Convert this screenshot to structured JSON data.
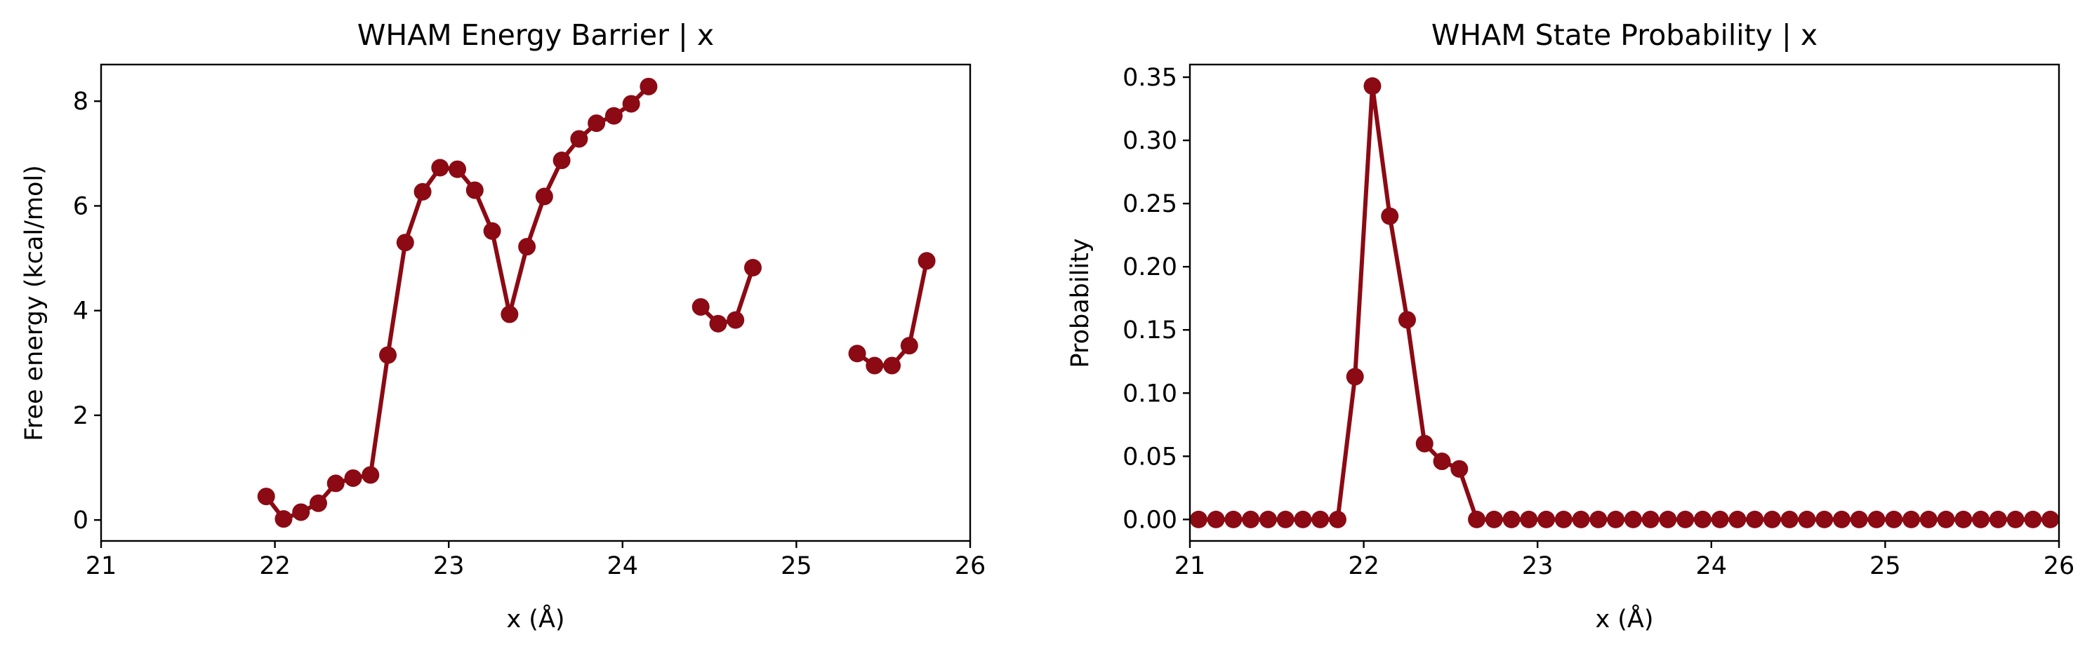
{
  "chart_data": [
    {
      "type": "line",
      "title": "WHAM Energy Barrier | x",
      "xlabel": "x (Å)",
      "ylabel": "Free energy (kcal/mol)",
      "xlim": [
        21,
        26
      ],
      "ylim": [
        -0.4,
        8.7
      ],
      "xticks": [
        21,
        22,
        23,
        24,
        25,
        26
      ],
      "xtick_labels": [
        "21",
        "22",
        "23",
        "24",
        "25",
        "26"
      ],
      "yticks": [
        0,
        2,
        4,
        6,
        8
      ],
      "ytick_labels": [
        "0",
        "2",
        "4",
        "6",
        "8"
      ],
      "grid": false,
      "color": "#8b0a14",
      "marker": "circle",
      "segments": [
        {
          "x": [
            21.95,
            22.05,
            22.15,
            22.25,
            22.35,
            22.45,
            22.55,
            22.65,
            22.75,
            22.85,
            22.95,
            23.05,
            23.15,
            23.25,
            23.35,
            23.45,
            23.55,
            23.65,
            23.75,
            23.85,
            23.95,
            24.05,
            24.15
          ],
          "y": [
            0.45,
            0.02,
            0.15,
            0.32,
            0.7,
            0.8,
            0.86,
            3.15,
            5.3,
            6.27,
            6.73,
            6.7,
            6.3,
            5.52,
            3.93,
            5.22,
            6.18,
            6.87,
            7.28,
            7.58,
            7.72,
            7.95,
            8.28
          ]
        },
        {
          "x": [
            24.45,
            24.55,
            24.65,
            24.75
          ],
          "y": [
            4.07,
            3.75,
            3.82,
            4.82
          ]
        },
        {
          "x": [
            25.35,
            25.45,
            25.55,
            25.65,
            25.75
          ],
          "y": [
            3.18,
            2.95,
            2.95,
            3.33,
            4.95
          ]
        }
      ]
    },
    {
      "type": "line",
      "title": "WHAM State Probability | x",
      "xlabel": "x (Å)",
      "ylabel": "Probability",
      "xlim": [
        21,
        26
      ],
      "ylim": [
        -0.017,
        0.36
      ],
      "xticks": [
        21,
        22,
        23,
        24,
        25,
        26
      ],
      "xtick_labels": [
        "21",
        "22",
        "23",
        "24",
        "25",
        "26"
      ],
      "yticks": [
        0,
        0.05,
        0.1,
        0.15,
        0.2,
        0.25,
        0.3,
        0.35
      ],
      "ytick_labels": [
        "0.00",
        "0.05",
        "0.10",
        "0.15",
        "0.20",
        "0.25",
        "0.30",
        "0.35"
      ],
      "grid": false,
      "color": "#8b0a14",
      "marker": "circle",
      "segments": [
        {
          "x": [
            21.05,
            21.15,
            21.25,
            21.35,
            21.45,
            21.55,
            21.65,
            21.75,
            21.85,
            21.95,
            22.05,
            22.15,
            22.25,
            22.35,
            22.45,
            22.55,
            22.65,
            22.75,
            22.85,
            22.95,
            23.05,
            23.15,
            23.25,
            23.35,
            23.45,
            23.55,
            23.65,
            23.75,
            23.85,
            23.95,
            24.05,
            24.15,
            24.25,
            24.35,
            24.45,
            24.55,
            24.65,
            24.75,
            24.85,
            24.95,
            25.05,
            25.15,
            25.25,
            25.35,
            25.45,
            25.55,
            25.65,
            25.75,
            25.85,
            25.95
          ],
          "y": [
            0,
            0,
            0,
            0,
            0,
            0,
            0,
            0,
            0,
            0.113,
            0.343,
            0.24,
            0.158,
            0.06,
            0.046,
            0.04,
            0,
            0,
            0,
            0,
            0,
            0,
            0,
            0,
            0,
            0,
            0,
            0,
            0,
            0,
            0,
            0,
            0,
            0,
            0,
            0,
            0,
            0,
            0,
            0,
            0,
            0,
            0,
            0,
            0,
            0,
            0,
            0,
            0,
            0
          ]
        }
      ]
    }
  ]
}
